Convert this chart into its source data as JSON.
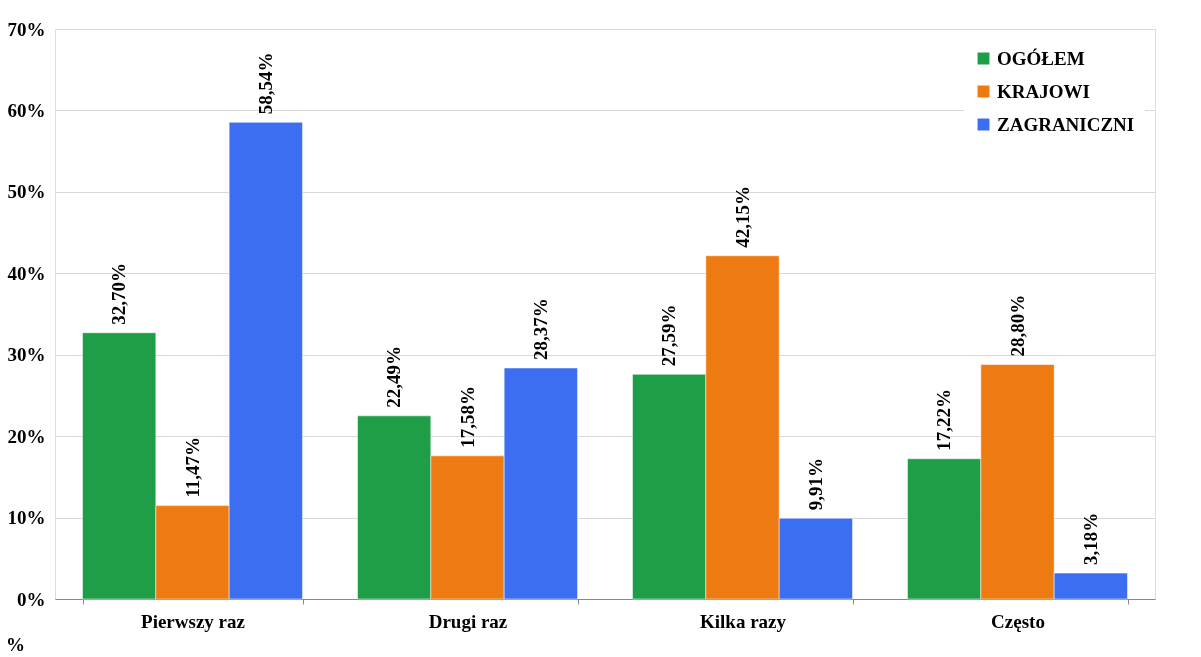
{
  "chart_data": {
    "type": "bar",
    "ylabel": "%",
    "categories": [
      "Pierwszy raz",
      "Drugi raz",
      "Kilka razy",
      "Często"
    ],
    "series": [
      {
        "name": "OGÓŁEM",
        "color": "#1f9e48",
        "values": [
          32.7,
          22.49,
          27.59,
          17.22
        ],
        "value_labels": [
          "32,70%",
          "22,49%",
          "27,59%",
          "17,22%"
        ]
      },
      {
        "name": "KRAJOWI",
        "color": "#ee7a12",
        "values": [
          11.47,
          17.58,
          42.15,
          28.8
        ],
        "value_labels": [
          "11,47%",
          "17,58%",
          "42,15%",
          "28,80%"
        ]
      },
      {
        "name": "ZAGRANICZNI",
        "color": "#3b6ef0",
        "values": [
          58.54,
          28.37,
          9.91,
          3.18
        ],
        "value_labels": [
          "58,54%",
          "28,37%",
          "9,91%",
          "3,18%"
        ]
      }
    ],
    "ylim": [
      0,
      70
    ],
    "yticks": [
      {
        "value": 0,
        "label": "0%"
      },
      {
        "value": 10,
        "label": "10%"
      },
      {
        "value": 20,
        "label": "20%"
      },
      {
        "value": 30,
        "label": "30%"
      },
      {
        "value": 40,
        "label": "40%"
      },
      {
        "value": 50,
        "label": "50%"
      },
      {
        "value": 60,
        "label": "60%"
      },
      {
        "value": 70,
        "label": "70%"
      }
    ],
    "grid": "y",
    "legend": "top right"
  }
}
